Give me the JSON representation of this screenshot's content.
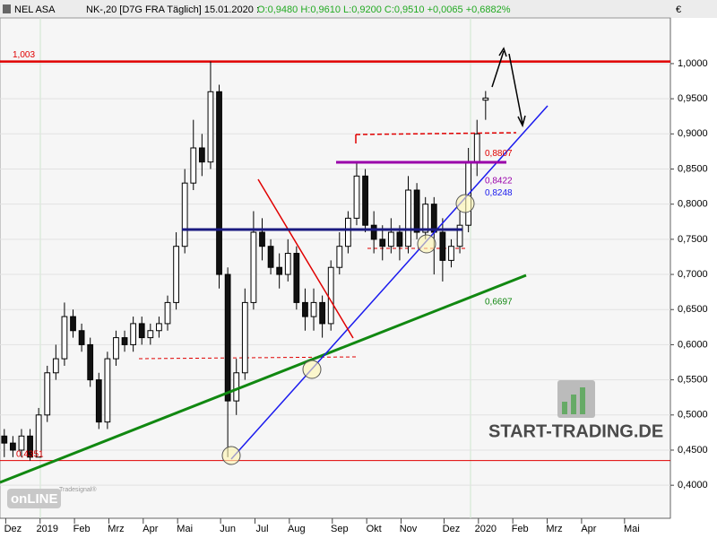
{
  "header": {
    "symbol": "NEL ASA",
    "info": "NK-,20 [D7G FRA  Täglich]  15.01.2020 :",
    "quote": "O:0,9480 H:0,9610 L:0,9200 C:0,9510 +0,0065 +0,6882%",
    "currency": "€"
  },
  "chart_data": {
    "type": "candlestick",
    "categories": [
      null,
      "Dez",
      null,
      null,
      null,
      "2019",
      null,
      null,
      null,
      "Feb",
      null,
      null,
      null,
      "Mrz",
      null,
      null,
      null,
      "Apr",
      null,
      null,
      null,
      "Mai",
      null,
      null,
      null,
      null,
      "Jun",
      null,
      null,
      null,
      "Jul",
      null,
      null,
      null,
      "Aug",
      null,
      null,
      null,
      null,
      "Sep",
      null,
      null,
      null,
      "Okt",
      null,
      null,
      null,
      "Nov",
      null,
      null,
      null,
      null,
      "Dez",
      null,
      null,
      null,
      "2020",
      null,
      null,
      null,
      "Feb",
      null,
      null,
      null,
      "Mrz",
      null,
      null,
      null,
      "Apr",
      null,
      null,
      null,
      null,
      "Mai",
      null,
      null,
      null,
      null
    ],
    "open": [
      0.47,
      0.46,
      0.45,
      0.47,
      0.44,
      0.5,
      0.56,
      0.58,
      0.64,
      0.62,
      0.6,
      0.55,
      0.49,
      0.58,
      0.61,
      0.6,
      0.63,
      0.61,
      0.62,
      0.63,
      0.66,
      0.74,
      0.83,
      0.88,
      0.86,
      0.96,
      0.7,
      0.52,
      0.56,
      0.66,
      0.76,
      0.74,
      0.71,
      0.7,
      0.73,
      0.66,
      0.64,
      0.66,
      0.63,
      0.71,
      0.74,
      0.78,
      0.84,
      0.77,
      0.75,
      0.74,
      0.76,
      0.74,
      0.82,
      0.76,
      0.8,
      0.76,
      0.72,
      0.74,
      0.77,
      0.86,
      0.948,
      null,
      null,
      null,
      null,
      null,
      null,
      null,
      null,
      null,
      null,
      null,
      null,
      null,
      null,
      null,
      null,
      null,
      null,
      null,
      null,
      null
    ],
    "high": [
      0.48,
      0.47,
      0.48,
      0.48,
      0.51,
      0.57,
      0.6,
      0.66,
      0.65,
      0.63,
      0.61,
      0.56,
      0.59,
      0.62,
      0.62,
      0.64,
      0.64,
      0.63,
      0.64,
      0.67,
      0.76,
      0.85,
      0.92,
      0.9,
      1.003,
      0.97,
      0.71,
      0.58,
      0.68,
      0.79,
      0.78,
      0.75,
      0.73,
      0.75,
      0.74,
      0.68,
      0.68,
      0.67,
      0.72,
      0.76,
      0.79,
      0.86,
      0.85,
      0.79,
      0.77,
      0.78,
      0.77,
      0.84,
      0.83,
      0.81,
      0.81,
      0.78,
      0.75,
      0.79,
      0.88,
      0.92,
      0.961,
      null,
      null,
      null,
      null,
      null,
      null,
      null,
      null,
      null,
      null,
      null,
      null,
      null,
      null,
      null,
      null,
      null,
      null,
      null,
      null,
      null
    ],
    "low": [
      0.44,
      0.44,
      0.44,
      0.4351,
      0.44,
      0.49,
      0.55,
      0.57,
      0.61,
      0.59,
      0.54,
      0.48,
      0.48,
      0.57,
      0.59,
      0.59,
      0.6,
      0.6,
      0.61,
      0.62,
      0.65,
      0.73,
      0.82,
      0.84,
      0.85,
      0.68,
      0.44,
      0.5,
      0.55,
      0.65,
      0.72,
      0.7,
      0.68,
      0.69,
      0.65,
      0.62,
      0.62,
      0.61,
      0.62,
      0.7,
      0.73,
      0.77,
      0.76,
      0.73,
      0.72,
      0.73,
      0.72,
      0.73,
      0.75,
      0.75,
      0.7,
      0.69,
      0.71,
      0.73,
      0.76,
      0.84,
      0.92,
      null,
      null,
      null,
      null,
      null,
      null,
      null,
      null,
      null,
      null,
      null,
      null,
      null,
      null,
      null,
      null,
      null,
      null,
      null,
      null,
      null
    ],
    "close": [
      0.46,
      0.45,
      0.47,
      0.44,
      0.5,
      0.56,
      0.58,
      0.64,
      0.62,
      0.6,
      0.55,
      0.49,
      0.58,
      0.61,
      0.6,
      0.63,
      0.61,
      0.62,
      0.63,
      0.66,
      0.74,
      0.83,
      0.88,
      0.86,
      0.96,
      0.7,
      0.52,
      0.56,
      0.66,
      0.76,
      0.74,
      0.71,
      0.7,
      0.73,
      0.66,
      0.64,
      0.66,
      0.63,
      0.71,
      0.74,
      0.78,
      0.84,
      0.77,
      0.75,
      0.74,
      0.76,
      0.74,
      0.82,
      0.76,
      0.8,
      0.76,
      0.72,
      0.74,
      0.77,
      0.86,
      0.9,
      0.951,
      null,
      null,
      null,
      null,
      null,
      null,
      null,
      null,
      null,
      null,
      null,
      null,
      null,
      null,
      null,
      null,
      null,
      null,
      null,
      null,
      null
    ],
    "ylim": [
      0.353,
      1.065
    ],
    "yticks": [
      {
        "value": 0.4,
        "label": "0,4000"
      },
      {
        "value": 0.45,
        "label": "0,4500"
      },
      {
        "value": 0.5,
        "label": "0,5000"
      },
      {
        "value": 0.55,
        "label": "0,5500"
      },
      {
        "value": 0.6,
        "label": "0,6000"
      },
      {
        "value": 0.65,
        "label": "0,6500"
      },
      {
        "value": 0.7,
        "label": "0,7000"
      },
      {
        "value": 0.75,
        "label": "0,7500"
      },
      {
        "value": 0.8,
        "label": "0,8000"
      },
      {
        "value": 0.85,
        "label": "0,8500"
      },
      {
        "value": 0.9,
        "label": "0,9000"
      },
      {
        "value": 0.95,
        "label": "0,9500"
      },
      {
        "value": 1.0,
        "label": "1,0000"
      }
    ],
    "grid": true,
    "levels": [
      {
        "label": "1,003",
        "value": 1.003,
        "color": "#e00000",
        "line": true
      },
      {
        "label": "0,4351",
        "value": 0.4351,
        "color": "#e00000",
        "line": true
      },
      {
        "label": "0,8807",
        "value": 0.8807,
        "color": "#e00000",
        "line": false
      },
      {
        "label": "0,8422",
        "value": 0.8422,
        "color": "#9900aa",
        "line": false
      },
      {
        "label": "0,8248",
        "value": 0.8248,
        "color": "#1a1aee",
        "line": false
      },
      {
        "label": "0,6697",
        "value": 0.6697,
        "color": "#118811",
        "line": false
      }
    ],
    "watermark": "START-TRADING.DE",
    "logo": "onLINE",
    "logo_sub": "Tradesignal®"
  }
}
